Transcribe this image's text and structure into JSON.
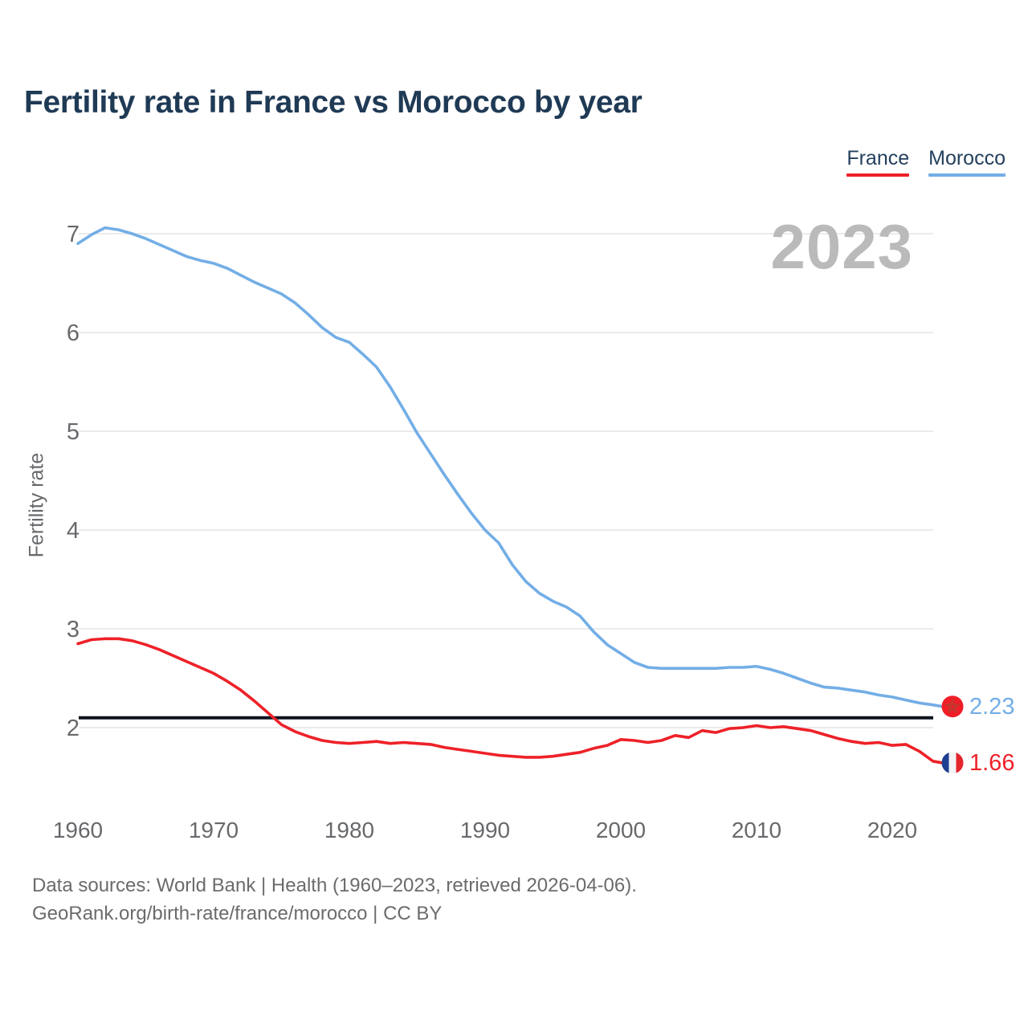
{
  "header": {
    "title": "Fertility rate in France vs Morocco by year"
  },
  "legend": {
    "items": [
      {
        "label": "France",
        "color": "#ee2128"
      },
      {
        "label": "Morocco",
        "color": "#73aee6"
      }
    ]
  },
  "chart_data": {
    "type": "line",
    "title": "Fertility rate in France vs Morocco by year",
    "xlabel": "",
    "ylabel": "Fertility rate",
    "watermark": "2023",
    "grid": "horizontal",
    "legend_position": "top-right",
    "xlim": [
      1960,
      2023
    ],
    "ylim": [
      2,
      7
    ],
    "x_ticks": [
      1960,
      1970,
      1980,
      1990,
      2000,
      2010,
      2020
    ],
    "y_ticks": [
      2,
      3,
      4,
      5,
      6,
      7
    ],
    "reference_line": {
      "value": 2.1,
      "color": "#0d1420"
    },
    "x": [
      1960,
      1961,
      1962,
      1963,
      1964,
      1965,
      1966,
      1967,
      1968,
      1969,
      1970,
      1971,
      1972,
      1973,
      1974,
      1975,
      1976,
      1977,
      1978,
      1979,
      1980,
      1981,
      1982,
      1983,
      1984,
      1985,
      1986,
      1987,
      1988,
      1989,
      1990,
      1991,
      1992,
      1993,
      1994,
      1995,
      1996,
      1997,
      1998,
      1999,
      2000,
      2001,
      2002,
      2003,
      2004,
      2005,
      2006,
      2007,
      2008,
      2009,
      2010,
      2011,
      2012,
      2013,
      2014,
      2015,
      2016,
      2017,
      2018,
      2019,
      2020,
      2021,
      2022,
      2023
    ],
    "series": [
      {
        "name": "France",
        "color": "#ee2128",
        "flag": "france",
        "end_label": "1.66",
        "end_value": 1.66,
        "values": [
          2.85,
          2.89,
          2.9,
          2.9,
          2.88,
          2.84,
          2.79,
          2.73,
          2.67,
          2.61,
          2.55,
          2.47,
          2.38,
          2.27,
          2.15,
          2.03,
          1.96,
          1.91,
          1.87,
          1.85,
          1.84,
          1.85,
          1.86,
          1.84,
          1.85,
          1.84,
          1.83,
          1.8,
          1.78,
          1.76,
          1.74,
          1.72,
          1.71,
          1.7,
          1.7,
          1.71,
          1.73,
          1.75,
          1.79,
          1.82,
          1.88,
          1.87,
          1.85,
          1.87,
          1.92,
          1.9,
          1.97,
          1.95,
          1.99,
          2.0,
          2.02,
          2.0,
          2.01,
          1.99,
          1.97,
          1.93,
          1.89,
          1.86,
          1.84,
          1.85,
          1.82,
          1.83,
          1.76,
          1.66
        ]
      },
      {
        "name": "Morocco",
        "color": "#73aee6",
        "flag": "morocco",
        "end_label": "2.23",
        "end_value": 2.23,
        "values": [
          6.9,
          6.99,
          7.06,
          7.04,
          7.0,
          6.95,
          6.89,
          6.83,
          6.77,
          6.73,
          6.7,
          6.65,
          6.58,
          6.51,
          6.45,
          6.39,
          6.3,
          6.18,
          6.05,
          5.95,
          5.9,
          5.78,
          5.65,
          5.45,
          5.22,
          4.98,
          4.77,
          4.56,
          4.36,
          4.17,
          4.0,
          3.87,
          3.65,
          3.48,
          3.36,
          3.28,
          3.22,
          3.13,
          2.97,
          2.84,
          2.75,
          2.66,
          2.61,
          2.6,
          2.6,
          2.6,
          2.6,
          2.6,
          2.61,
          2.61,
          2.62,
          2.59,
          2.55,
          2.5,
          2.45,
          2.41,
          2.4,
          2.38,
          2.36,
          2.33,
          2.31,
          2.28,
          2.25,
          2.23
        ]
      }
    ]
  },
  "flags": {
    "france": {
      "blue": "#1f3f90",
      "white": "#f4f4f6",
      "red": "#e5242b"
    },
    "morocco": {
      "bg": "#f01d26",
      "star": "#bb3a2f"
    }
  },
  "style": {
    "gridline_color": "#ebebeb",
    "axis_text_color": "#67696c",
    "title_color": "#1f3a55",
    "watermark_color": "#bababa",
    "footer_color": "#6b6b6b"
  },
  "footer": {
    "line1": "Data sources: World Bank | Health (1960–2023, retrieved 2026-04-06).",
    "line2": "GeoRank.org/birth-rate/france/morocco | CC BY"
  }
}
